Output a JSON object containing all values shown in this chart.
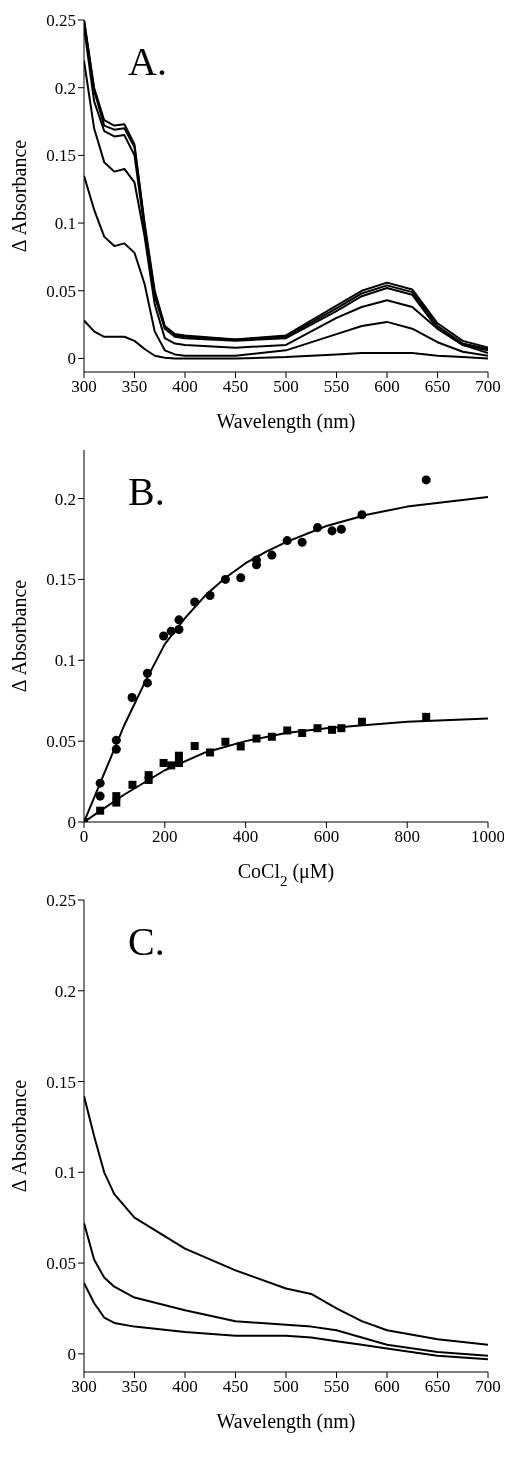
{
  "chart_data": [
    {
      "type": "line",
      "xlabel": "Wavelength (nm)",
      "ylabel": "Δ Absorbance",
      "annotations": [
        "A."
      ],
      "xlim": [
        300,
        700
      ],
      "xticks": [
        300,
        350,
        400,
        450,
        500,
        550,
        600,
        650,
        700
      ],
      "ylim": [
        -0.01,
        0.25
      ],
      "yticks": [
        0,
        0.05,
        0.1,
        0.15,
        0.2,
        0.25
      ],
      "line_style": "solid",
      "x": [
        300,
        310,
        320,
        330,
        340,
        350,
        360,
        370,
        380,
        390,
        400,
        450,
        500,
        550,
        575,
        600,
        625,
        650,
        675,
        700
      ],
      "series": [
        {
          "color": "#000000",
          "values": [
            0.25,
            0.2,
            0.176,
            0.172,
            0.173,
            0.158,
            0.1,
            0.05,
            0.024,
            0.018,
            0.017,
            0.014,
            0.017,
            0.039,
            0.05,
            0.056,
            0.051,
            0.026,
            0.013,
            0.008
          ]
        },
        {
          "color": "#000000",
          "values": [
            0.25,
            0.198,
            0.172,
            0.169,
            0.17,
            0.156,
            0.098,
            0.048,
            0.023,
            0.017,
            0.016,
            0.014,
            0.016,
            0.037,
            0.048,
            0.054,
            0.049,
            0.024,
            0.011,
            0.007
          ]
        },
        {
          "color": "#000000",
          "values": [
            0.245,
            0.19,
            0.168,
            0.164,
            0.165,
            0.15,
            0.095,
            0.046,
            0.022,
            0.016,
            0.015,
            0.013,
            0.015,
            0.035,
            0.046,
            0.052,
            0.047,
            0.022,
            0.01,
            0.006
          ]
        },
        {
          "color": "#000000",
          "values": [
            0.22,
            0.17,
            0.145,
            0.138,
            0.14,
            0.13,
            0.09,
            0.04,
            0.015,
            0.011,
            0.01,
            0.008,
            0.01,
            0.03,
            0.038,
            0.043,
            0.038,
            0.022,
            0.01,
            0.004
          ]
        },
        {
          "color": "#000000",
          "values": [
            0.135,
            0.11,
            0.09,
            0.083,
            0.085,
            0.078,
            0.055,
            0.02,
            0.006,
            0.003,
            0.002,
            0.002,
            0.006,
            0.018,
            0.024,
            0.027,
            0.022,
            0.012,
            0.005,
            0.002
          ]
        },
        {
          "color": "#000000",
          "values": [
            0.028,
            0.02,
            0.016,
            0.016,
            0.016,
            0.013,
            0.007,
            0.002,
            0.0005,
            0,
            0,
            0,
            0.001,
            0.003,
            0.004,
            0.004,
            0.004,
            0.002,
            0.001,
            0
          ]
        }
      ]
    },
    {
      "type": "scatter",
      "xlabel": "CoCl$_{2}$ (μM)",
      "ylabel": "Δ Absorbance",
      "annotations": [
        "B."
      ],
      "xlim": [
        0,
        1000
      ],
      "xticks": [
        0,
        200,
        400,
        600,
        800,
        1000
      ],
      "ylim": [
        0,
        0.23
      ],
      "yticks": [
        0,
        0.05,
        0.1,
        0.15,
        0.2
      ],
      "series": [
        {
          "type": "line",
          "marker": "none",
          "color": "#000000",
          "x": [
            0,
            50,
            100,
            150,
            200,
            250,
            300,
            350,
            400,
            450,
            500,
            600,
            700,
            800,
            900,
            1000
          ],
          "values": [
            0,
            0.03,
            0.06,
            0.086,
            0.11,
            0.126,
            0.14,
            0.151,
            0.16,
            0.167,
            0.173,
            0.183,
            0.19,
            0.195,
            0.198,
            0.201
          ]
        },
        {
          "type": "line",
          "marker": "none",
          "color": "#000000",
          "x": [
            0,
            100,
            200,
            300,
            400,
            500,
            600,
            700,
            800,
            1000
          ],
          "values": [
            0,
            0.017,
            0.032,
            0.043,
            0.05,
            0.055,
            0.058,
            0.06,
            0.062,
            0.064
          ]
        },
        {
          "marker": "circle",
          "color": "#000000",
          "x": [
            40,
            40,
            80,
            80,
            119,
            157,
            157,
            197,
            216,
            235,
            235,
            274,
            312,
            350,
            388,
            427,
            427,
            465,
            503,
            540,
            578,
            614,
            637,
            688,
            847
          ],
          "values": [
            0.024,
            0.016,
            0.0506,
            0.045,
            0.077,
            0.092,
            0.086,
            0.115,
            0.118,
            0.119,
            0.125,
            0.136,
            0.14,
            0.15,
            0.151,
            0.162,
            0.159,
            0.165,
            0.174,
            0.173,
            0.182,
            0.18,
            0.181,
            0.19,
            0.2115
          ]
        },
        {
          "marker": "square",
          "color": "#000000",
          "x": [
            0,
            40,
            80,
            80,
            120,
            160,
            160,
            197,
            216,
            235,
            235,
            274,
            312,
            350,
            388,
            427,
            465,
            503,
            540,
            578,
            614,
            637,
            688,
            847
          ],
          "values": [
            0,
            0.007,
            0.012,
            0.016,
            0.023,
            0.026,
            0.029,
            0.0365,
            0.035,
            0.0365,
            0.041,
            0.047,
            0.043,
            0.0496,
            0.0467,
            0.0516,
            0.0527,
            0.0566,
            0.055,
            0.058,
            0.057,
            0.058,
            0.062,
            0.065
          ]
        }
      ]
    },
    {
      "type": "line",
      "xlabel": "Wavelength (nm)",
      "ylabel": "Δ Absorbance",
      "annotations": [
        "C."
      ],
      "xlim": [
        300,
        700
      ],
      "xticks": [
        300,
        350,
        400,
        450,
        500,
        550,
        600,
        650,
        700
      ],
      "ylim": [
        -0.01,
        0.25
      ],
      "yticks": [
        0,
        0.05,
        0.1,
        0.15,
        0.2,
        0.25
      ],
      "line_style": "solid",
      "x": [
        300,
        310,
        320,
        330,
        350,
        400,
        450,
        500,
        525,
        550,
        575,
        600,
        650,
        700
      ],
      "series": [
        {
          "color": "#000000",
          "values": [
            0.142,
            0.12,
            0.1,
            0.088,
            0.075,
            0.058,
            0.046,
            0.036,
            0.033,
            0.025,
            0.018,
            0.013,
            0.008,
            0.005
          ]
        },
        {
          "color": "#000000",
          "values": [
            0.072,
            0.052,
            0.042,
            0.037,
            0.031,
            0.024,
            0.018,
            0.016,
            0.015,
            0.013,
            0.009,
            0.005,
            0.001,
            -0.001
          ]
        },
        {
          "color": "#000000",
          "values": [
            0.039,
            0.028,
            0.02,
            0.017,
            0.015,
            0.012,
            0.01,
            0.01,
            0.009,
            0.007,
            0.005,
            0.003,
            -0.001,
            -0.003
          ]
        }
      ]
    }
  ]
}
